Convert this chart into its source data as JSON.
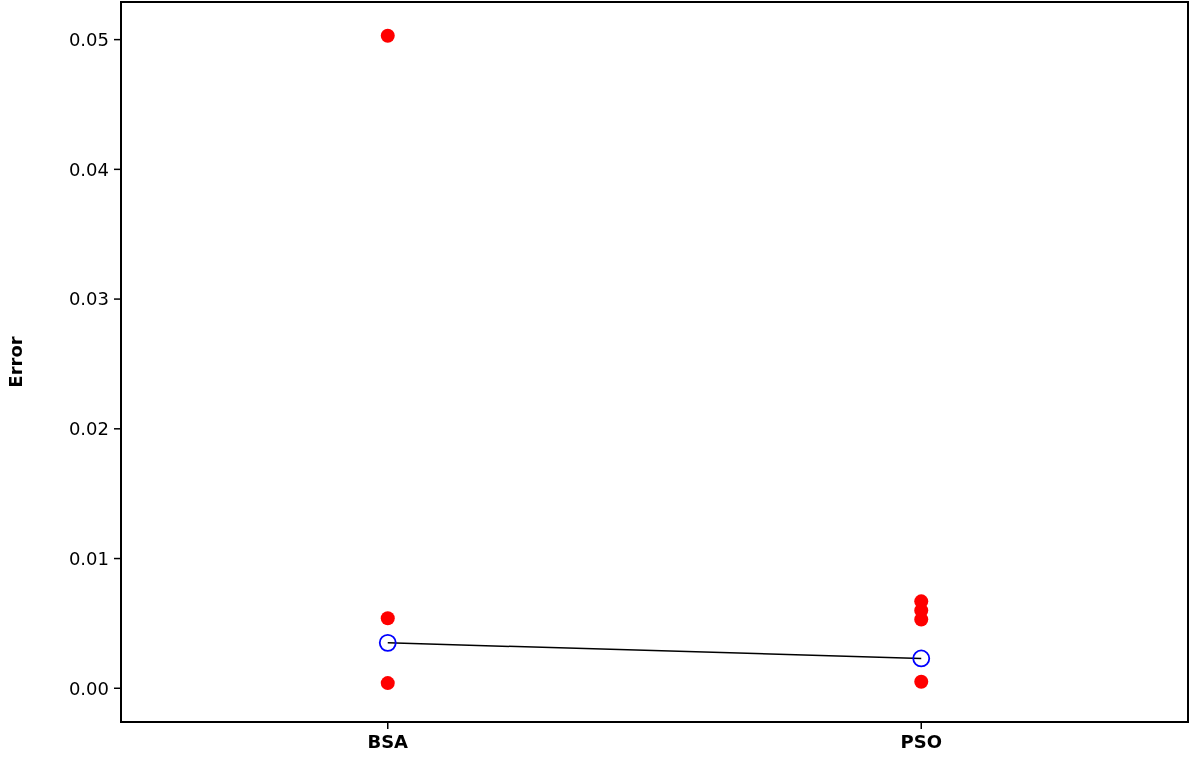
{
  "chart_data": {
    "type": "scatter",
    "ylabel": "Error",
    "categories": [
      "BSA",
      "PSO"
    ],
    "ylim": [
      -0.0026,
      0.0529
    ],
    "yticks": [
      {
        "value": 0,
        "label": "0.00"
      },
      {
        "value": 0.01,
        "label": "0.01"
      },
      {
        "value": 0.02,
        "label": "0.02"
      },
      {
        "value": 0.03,
        "label": "0.03"
      },
      {
        "value": 0.04,
        "label": "0.04"
      },
      {
        "value": 0.05,
        "label": "0.05"
      }
    ],
    "grid": false,
    "series": [
      {
        "color": "#ff0000",
        "marker": "circle",
        "x": [
          "BSA",
          "BSA",
          "BSA"
        ],
        "values": [
          0.0503,
          0.0054,
          0.0004
        ]
      },
      {
        "color": "#ff0000",
        "marker": "circle",
        "x": [
          "PSO",
          "PSO",
          "PSO",
          "PSO"
        ],
        "values": [
          0.0067,
          0.006,
          0.0053,
          0.0005
        ]
      },
      {
        "type": "line",
        "color": "#0000ff",
        "marker": "circle",
        "values": [
          0.0035,
          0.0023
        ]
      }
    ]
  }
}
